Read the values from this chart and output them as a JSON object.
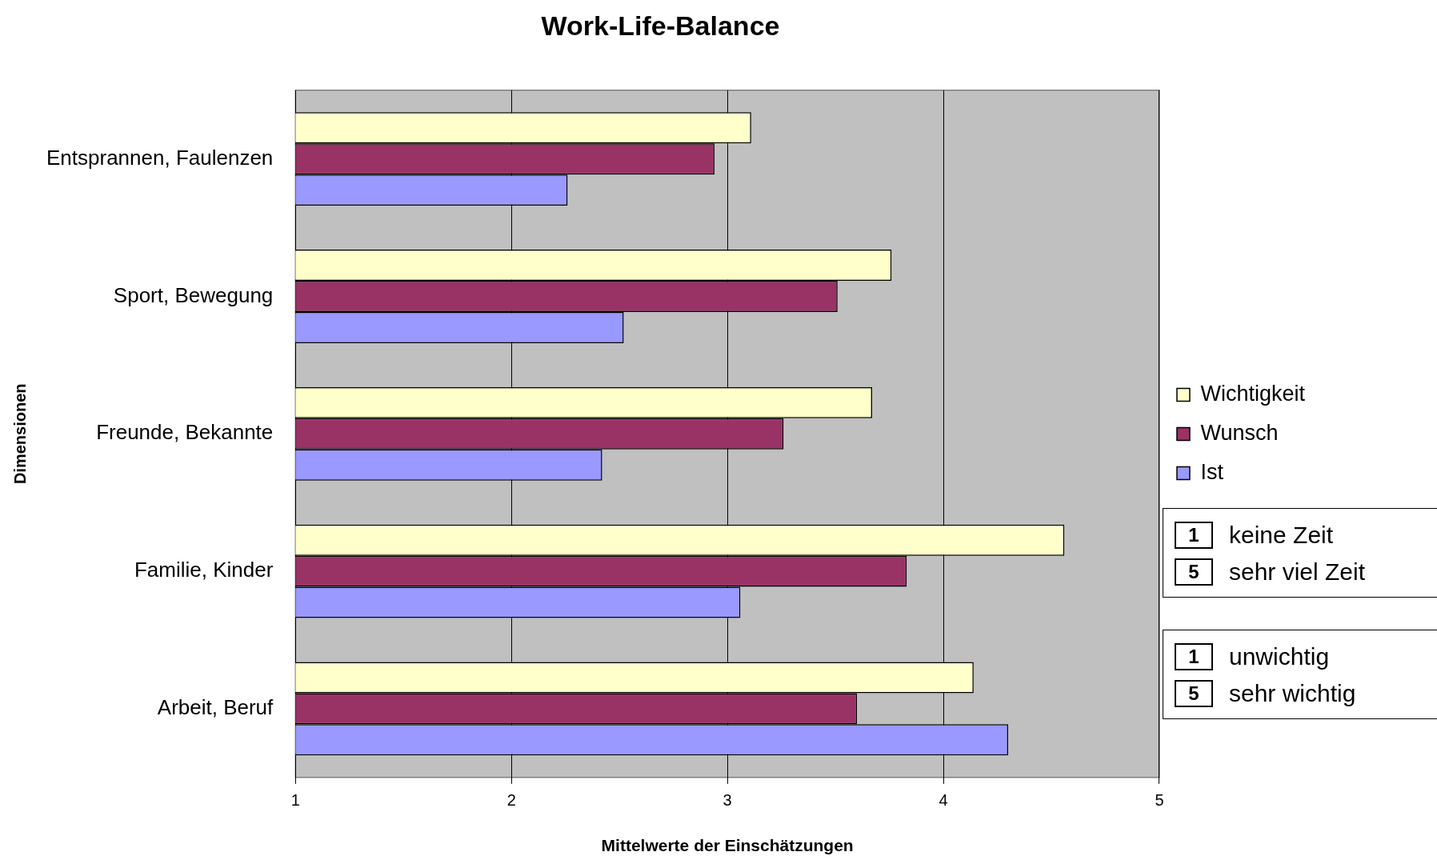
{
  "chart_data": {
    "type": "bar",
    "orientation": "horizontal",
    "title": "Work-Life-Balance",
    "xlabel": "Mittelwerte der Einschätzungen",
    "ylabel": "Dimensionen",
    "categories": [
      "Entsprannen, Faulenzen",
      "Sport, Bewegung",
      "Freunde, Bekannte",
      "Familie, Kinder",
      "Arbeit, Beruf"
    ],
    "series": [
      {
        "name": "Wichtigkeit",
        "color": "#ffffcc",
        "values": [
          3.11,
          3.76,
          3.67,
          4.56,
          4.14
        ]
      },
      {
        "name": "Wunsch",
        "color": "#993366",
        "values": [
          2.94,
          3.51,
          3.26,
          3.83,
          3.6
        ]
      },
      {
        "name": "Ist",
        "color": "#9999ff",
        "values": [
          2.26,
          2.52,
          2.42,
          3.06,
          4.3
        ]
      }
    ],
    "xlim": [
      1,
      5
    ],
    "xticks": [
      1,
      2,
      3,
      4,
      5
    ],
    "grid": "x",
    "legend": "right",
    "annotations": [
      "1 keine Zeit",
      "5 sehr viel Zeit",
      "1 unwichtig",
      "5 sehr wichtig"
    ]
  }
}
